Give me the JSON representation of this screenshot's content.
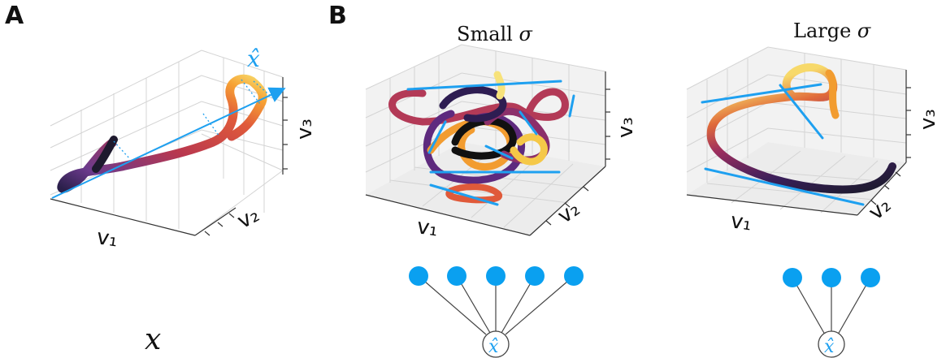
{
  "panel_a": {
    "letter": "A",
    "axis_labels": {
      "v1": "v₁",
      "v2": "v₂",
      "v3": "v₃"
    },
    "arrow_label": "x̂",
    "bottom_label": "x"
  },
  "panel_b": {
    "letter": "B",
    "small": {
      "title_prefix": "Small ",
      "title_sigma": "σ",
      "nodes": 5,
      "hub_label": "x̂",
      "axis_labels": {
        "v1": "v₁",
        "v2": "v₂",
        "v3": "v₃"
      }
    },
    "large": {
      "title_prefix": "Large ",
      "title_sigma": "σ",
      "nodes": 3,
      "hub_label": "x̂",
      "axis_labels": {
        "v1": "v₁",
        "v2": "v₂",
        "v3": "v₃"
      }
    }
  },
  "colors": {
    "accent": "#1ea0f0",
    "node": "#0aa0f0",
    "grid": "#d0d0d0",
    "pane": "#f2f2f2"
  }
}
